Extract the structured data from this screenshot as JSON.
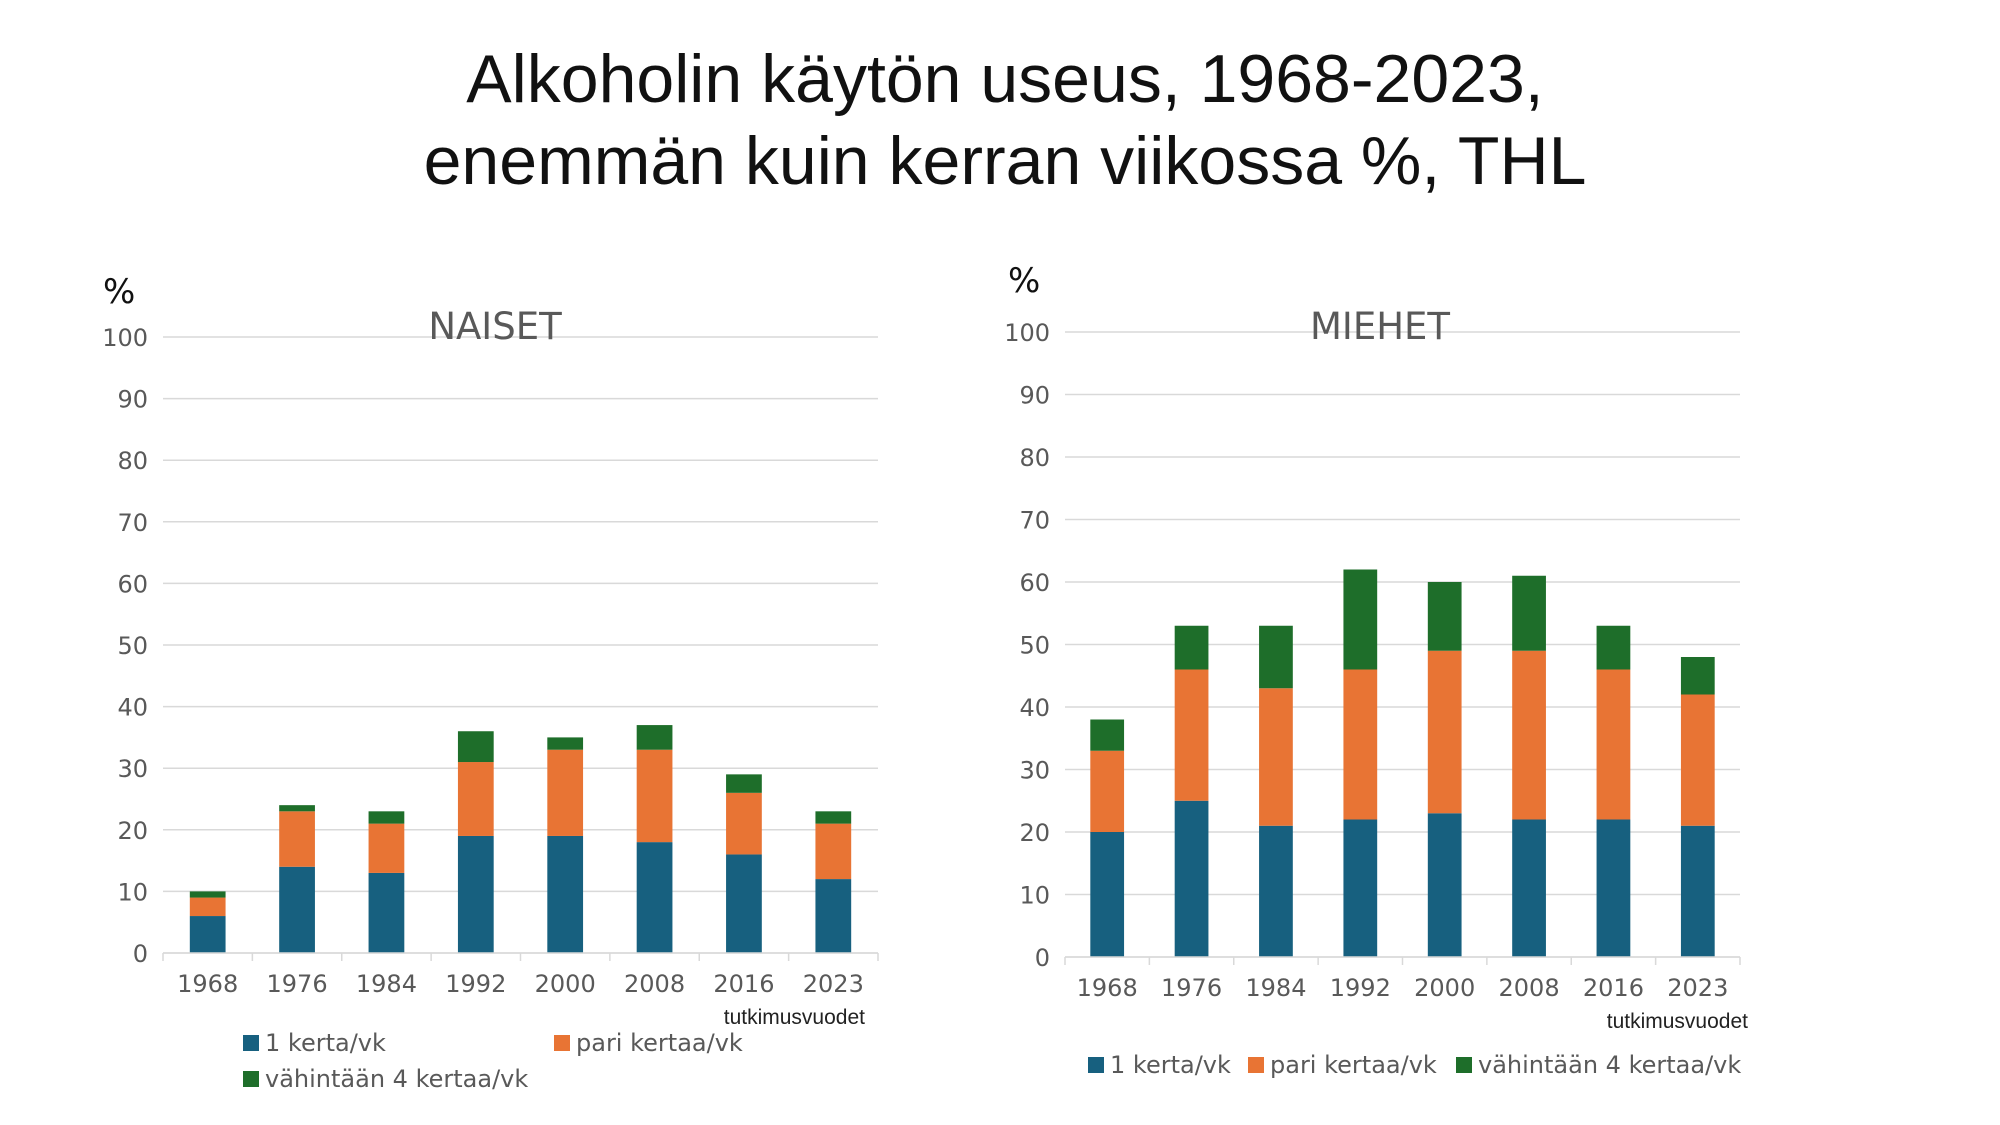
{
  "page": {
    "title_line1": "Alkoholin käytön useus, 1968-2023,",
    "title_line2": "enemmän kuin kerran viikossa %, THL"
  },
  "colors": {
    "series": [
      "#17607f",
      "#e87434",
      "#1e6e2a"
    ],
    "grid": "#d9d9d9",
    "text": "#595959"
  },
  "chart_data": [
    {
      "type": "bar",
      "stacked": true,
      "title": "NAISET",
      "ylabel": "%",
      "xlabel": "tutkimusvuodet",
      "ylim": [
        0,
        100
      ],
      "yticks": [
        0,
        10,
        20,
        30,
        40,
        50,
        60,
        70,
        80,
        90,
        100
      ],
      "grid": true,
      "legend": "bottom",
      "categories": [
        "1968",
        "1976",
        "1984",
        "1992",
        "2000",
        "2008",
        "2016",
        "2023"
      ],
      "series": [
        {
          "name": "1 kerta/vk",
          "values": [
            6,
            14,
            13,
            19,
            19,
            18,
            16,
            12
          ]
        },
        {
          "name": "pari kertaa/vk",
          "values": [
            3,
            9,
            8,
            12,
            14,
            15,
            10,
            9
          ]
        },
        {
          "name": "vähintään 4 kertaa/vk",
          "values": [
            1,
            1,
            2,
            5,
            2,
            4,
            3,
            2
          ]
        }
      ]
    },
    {
      "type": "bar",
      "stacked": true,
      "title": "MIEHET",
      "ylabel": "%",
      "xlabel": "tutkimusvuodet",
      "ylim": [
        0,
        100
      ],
      "yticks": [
        0,
        10,
        20,
        30,
        40,
        50,
        60,
        70,
        80,
        90,
        100
      ],
      "grid": true,
      "legend": "bottom",
      "categories": [
        "1968",
        "1976",
        "1984",
        "1992",
        "2000",
        "2008",
        "2016",
        "2023"
      ],
      "series": [
        {
          "name": "1 kerta/vk",
          "values": [
            20,
            25,
            21,
            22,
            23,
            22,
            22,
            21
          ]
        },
        {
          "name": "pari kertaa/vk",
          "values": [
            13,
            21,
            22,
            24,
            26,
            27,
            24,
            21
          ]
        },
        {
          "name": "vähintään 4 kertaa/vk",
          "values": [
            5,
            7,
            10,
            16,
            11,
            12,
            7,
            6
          ]
        }
      ]
    }
  ]
}
